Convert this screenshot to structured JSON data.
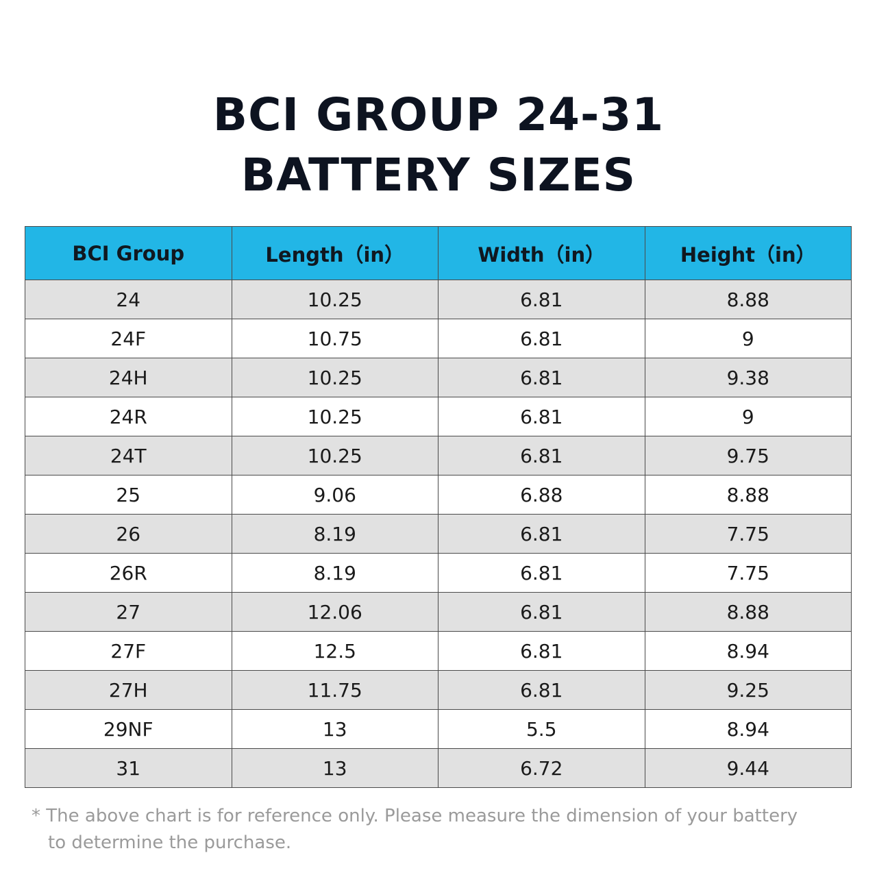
{
  "title": {
    "line1": "BCI GROUP 24-31",
    "line2": "BATTERY SIZES"
  },
  "chart_data": {
    "type": "table",
    "title": "BCI GROUP 24-31 BATTERY SIZES",
    "columns": [
      "BCI Group",
      "Length（in）",
      "Width（in）",
      "Height（in）"
    ],
    "rows": [
      [
        "24",
        "10.25",
        "6.81",
        "8.88"
      ],
      [
        "24F",
        "10.75",
        "6.81",
        "9"
      ],
      [
        "24H",
        "10.25",
        "6.81",
        "9.38"
      ],
      [
        "24R",
        "10.25",
        "6.81",
        "9"
      ],
      [
        "24T",
        "10.25",
        "6.81",
        "9.75"
      ],
      [
        "25",
        "9.06",
        "6.88",
        "8.88"
      ],
      [
        "26",
        "8.19",
        "6.81",
        "7.75"
      ],
      [
        "26R",
        "8.19",
        "6.81",
        "7.75"
      ],
      [
        "27",
        "12.06",
        "6.81",
        "8.88"
      ],
      [
        "27F",
        "12.5",
        "6.81",
        "8.94"
      ],
      [
        "27H",
        "11.75",
        "6.81",
        "9.25"
      ],
      [
        "29NF",
        "13",
        "5.5",
        "8.94"
      ],
      [
        "31",
        "13",
        "6.72",
        "9.44"
      ]
    ]
  },
  "footnote": {
    "line1": "* The above chart is for reference only. Please measure the dimension of your battery",
    "line2": "to determine the purchase."
  },
  "colors": {
    "header_bg": "#22b6e6",
    "stripe_bg": "#e1e1e1",
    "title_text": "#0d1320",
    "footnote_text": "#9a9a9a"
  }
}
